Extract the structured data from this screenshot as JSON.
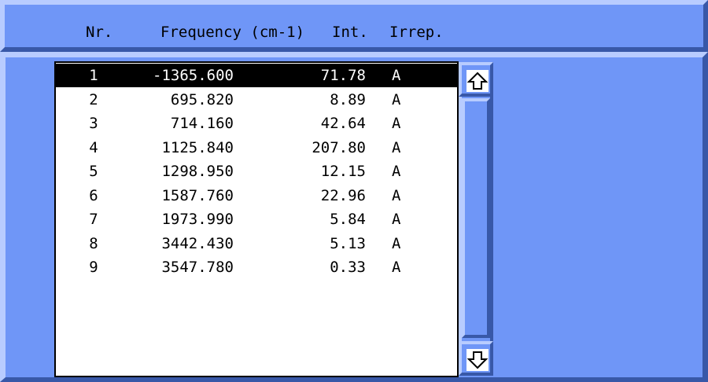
{
  "header": {
    "nr": "Nr.",
    "frequency": "Frequency (cm-1)",
    "intensity": "Int.",
    "irrep": "Irrep."
  },
  "rows": [
    {
      "nr": "1",
      "frequency": "-1365.600",
      "intensity": "71.78",
      "irrep": "A",
      "selected": true
    },
    {
      "nr": "2",
      "frequency": "695.820",
      "intensity": "8.89",
      "irrep": "A"
    },
    {
      "nr": "3",
      "frequency": "714.160",
      "intensity": "42.64",
      "irrep": "A"
    },
    {
      "nr": "4",
      "frequency": "1125.840",
      "intensity": "207.80",
      "irrep": "A"
    },
    {
      "nr": "5",
      "frequency": "1298.950",
      "intensity": "12.15",
      "irrep": "A"
    },
    {
      "nr": "6",
      "frequency": "1587.760",
      "intensity": "22.96",
      "irrep": "A"
    },
    {
      "nr": "7",
      "frequency": "1973.990",
      "intensity": "5.84",
      "irrep": "A"
    },
    {
      "nr": "8",
      "frequency": "3442.430",
      "intensity": "5.13",
      "irrep": "A"
    },
    {
      "nr": "9",
      "frequency": "3547.780",
      "intensity": "0.33",
      "irrep": "A"
    }
  ],
  "scrollbar": {
    "up_icon": "arrow-up-outline",
    "down_icon": "arrow-down-outline"
  },
  "colors": {
    "panel": "#6f96f7",
    "bevel_light": "#b8ccff",
    "bevel_dark": "#3858a8",
    "selection_bg": "#000000",
    "selection_fg": "#ffffff"
  }
}
